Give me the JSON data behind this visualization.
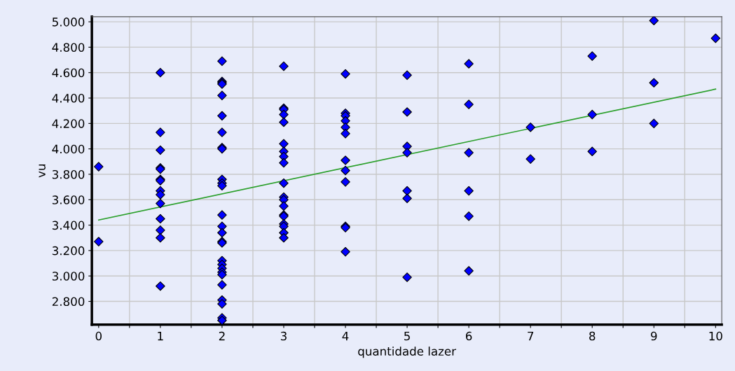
{
  "chart_data": {
    "type": "scatter",
    "xlabel": "quantidade lazer",
    "ylabel": "vu",
    "xlim": [
      -0.11,
      10.1
    ],
    "ylim": [
      2617,
      5040
    ],
    "xticks": [
      0,
      {
        "value": 0.5,
        "label": null
      },
      1,
      {
        "value": 1.5,
        "label": null
      },
      2,
      {
        "value": 2.5,
        "label": null
      },
      3,
      {
        "value": 3.5,
        "label": null
      },
      4,
      {
        "value": 4.5,
        "label": null
      },
      5,
      {
        "value": 5.5,
        "label": null
      },
      6,
      {
        "value": 6.5,
        "label": null
      },
      7,
      {
        "value": 7.5,
        "label": null
      },
      8,
      {
        "value": 8.5,
        "label": null
      },
      9,
      {
        "value": 9.5,
        "label": null
      },
      10
    ],
    "yticks": [
      {
        "value": 2800,
        "label": "2.800"
      },
      {
        "value": 3000,
        "label": "3.000"
      },
      {
        "value": 3200,
        "label": "3.200"
      },
      {
        "value": 3400,
        "label": "3.400"
      },
      {
        "value": 3600,
        "label": "3.600"
      },
      {
        "value": 3800,
        "label": "3.800"
      },
      {
        "value": 4000,
        "label": "4.000"
      },
      {
        "value": 4200,
        "label": "4.200"
      },
      {
        "value": 4400,
        "label": "4.400"
      },
      {
        "value": 4600,
        "label": "4.600"
      },
      {
        "value": 4800,
        "label": "4.800"
      },
      {
        "value": 5000,
        "label": "5.000"
      }
    ],
    "grid": true,
    "marker": "diamond",
    "series": [
      {
        "color": "#0000ff",
        "x": [
          0,
          0,
          1,
          1,
          1,
          1,
          1,
          1,
          1,
          1,
          1,
          1,
          1,
          1,
          1,
          1,
          2,
          2,
          2,
          2,
          2,
          2,
          2,
          2,
          2,
          2,
          2,
          2,
          2,
          2,
          2,
          2,
          2,
          2,
          2,
          2,
          2,
          2,
          2,
          2,
          2,
          2,
          2,
          3,
          3,
          3,
          3,
          3,
          3,
          3,
          3,
          3,
          3,
          3,
          3,
          3,
          3,
          3,
          3,
          3,
          3,
          3,
          4,
          4,
          4,
          4,
          4,
          4,
          4,
          4,
          4,
          4,
          4,
          4,
          5,
          5,
          5,
          5,
          5,
          5,
          5,
          6,
          6,
          6,
          6,
          6,
          6,
          7,
          7,
          8,
          8,
          8,
          9,
          9,
          9,
          10
        ],
        "values": [
          3860,
          3270,
          4600,
          4130,
          3990,
          3850,
          3840,
          3760,
          3750,
          3670,
          3640,
          3570,
          3450,
          3360,
          3300,
          2920,
          4690,
          4530,
          4520,
          4510,
          4420,
          4260,
          4130,
          4010,
          4000,
          3760,
          3730,
          3710,
          3480,
          3390,
          3340,
          3270,
          3260,
          3120,
          3090,
          3060,
          3030,
          3010,
          2930,
          2810,
          2780,
          2670,
          2650,
          4650,
          4320,
          4310,
          4270,
          4210,
          4040,
          3980,
          3940,
          3890,
          3730,
          3620,
          3600,
          3550,
          3480,
          3470,
          3410,
          3390,
          3340,
          3300,
          4590,
          4280,
          4260,
          4220,
          4170,
          4120,
          3910,
          3830,
          3740,
          3390,
          3380,
          3190,
          4580,
          4290,
          4020,
          3970,
          3670,
          3610,
          2990,
          4670,
          4350,
          3970,
          3670,
          3470,
          3040,
          4170,
          3920,
          4730,
          4270,
          3980,
          5010,
          4520,
          4200,
          4870
        ]
      },
      {
        "type": "line",
        "color": "#2ca02c",
        "x": [
          0,
          10
        ],
        "values": [
          3440,
          4470
        ],
        "marker": "none",
        "line_style": "solid"
      }
    ]
  }
}
